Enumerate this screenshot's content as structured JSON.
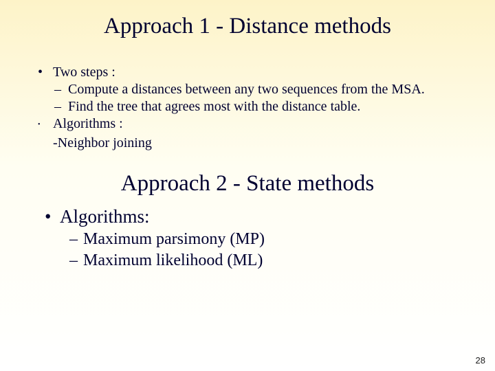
{
  "title1": "Approach 1 - Distance methods",
  "section1": {
    "item1_label": "Two steps :",
    "item1_sub1": "Compute a distances between any two sequences from the MSA.",
    "item1_sub2": "Find the tree that agrees most with the distance table.",
    "item2_label": "Algorithms :",
    "item2_sub1": "-Neighbor joining"
  },
  "title2": "Approach 2 - State methods",
  "section2": {
    "item1_label": "Algorithms:",
    "item1_sub1": "Maximum parsimony (MP)",
    "item1_sub2": "Maximum likelihood (ML)"
  },
  "page_number": "28",
  "glyphs": {
    "bullet": "•",
    "dash": "–"
  },
  "colors": {
    "text": "#000030",
    "bg_top": "#fdf3c8",
    "bg_mid": "#fffef2",
    "bg_bottom": "#ffffff"
  },
  "typography": {
    "title_fontsize_pt": 25,
    "body1_fontsize_pt": 15,
    "body2_fontsize_pt": 20,
    "sub2_fontsize_pt": 18,
    "font_family": "Times New Roman"
  }
}
